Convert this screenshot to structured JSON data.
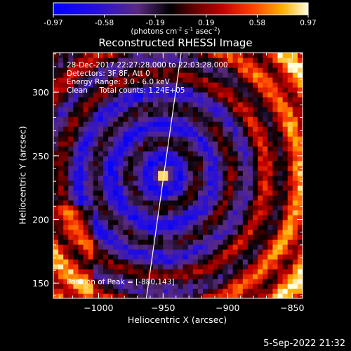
{
  "colorbar": {
    "ticks": [
      "-0.97",
      "-0.58",
      "-0.19",
      "0.19",
      "0.58",
      "0.97"
    ],
    "unit_html": "(photons cm<sup>-2</sup> s<sup>-1</sup> asec<sup>-2</sup>)"
  },
  "title": "Reconstructed RHESSI Image",
  "info": {
    "time": "28-Dec-2017 22:27:28.000 to 22:03:28.000",
    "detectors": "Detectors: 3F 8F, Att 0",
    "energy": "Energy Range: 3.0 - 6.0 keV",
    "clean": "Clean     Total counts: 1.24E+05"
  },
  "peak_text": "Position of Peak = [-880,143]",
  "footer": "5-Sep-2022 21:32",
  "chart_data": {
    "type": "heatmap",
    "title": "Reconstructed RHESSI Image",
    "xlabel": "Heliocentric X (arcsec)",
    "ylabel": "Heliocentric Y (arcsec)",
    "xlim": [
      -1035,
      -842
    ],
    "ylim": [
      138,
      331
    ],
    "xticks": [
      -1000,
      -950,
      -900,
      -850
    ],
    "xtick_labels": [
      "−1000",
      "−950",
      "−900",
      "−850"
    ],
    "yticks": [
      150,
      200,
      250,
      300
    ],
    "colorbar_range": [
      -0.97,
      0.97
    ],
    "peak_position": [
      -880,
      143
    ],
    "source_center": [
      -950,
      235
    ],
    "limb_line": [
      [
        -963,
        138
      ],
      [
        -936,
        331
      ]
    ]
  }
}
